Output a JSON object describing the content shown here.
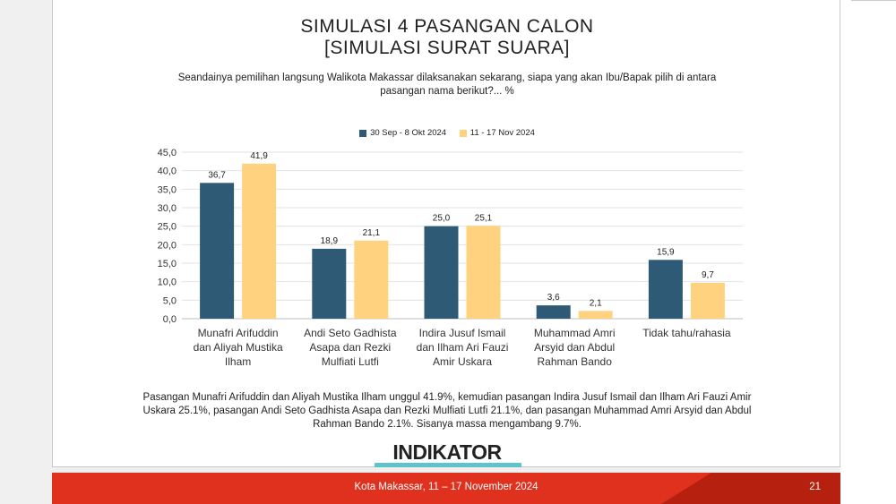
{
  "slide": {
    "title_line1": "SIMULASI 4 PASANGAN CALON",
    "title_line2": "[SIMULASI SURAT SUARA]",
    "question_line1": "Seandainya pemilihan langsung Walikota Makassar dilaksanakan sekarang, siapa yang akan Ibu/Bapak pilih di antara",
    "question_line2": "pasangan nama berikut?... %",
    "summary_line1": "Pasangan Munafri Arifuddin dan Aliyah Mustika Ilham unggul 41.9%, kemudian pasangan Indira Jusuf Ismail dan Ilham Ari Fauzi Amir",
    "summary_line2": "Uskara 25.1%, pasangan Andi Seto Gadhista Asapa dan Rezki Mulfiati Lutfi 21.1%, dan pasangan Muhammad Amri Arsyid dan Abdul",
    "summary_line3": "Rahman Bando 2.1%. Sisanya massa mengambang 9.7%.",
    "logo_text": "INDIKATOR",
    "footer_text": "Kota Makassar, 11 – 17 November 2024",
    "page_number": "21"
  },
  "colors": {
    "series1": "#2e5a76",
    "series2": "#ffd27f",
    "footer": "#e0301e",
    "accent": "#5fc4c8"
  },
  "chart_data": {
    "type": "bar",
    "categories": [
      [
        "Munafri Arifuddin",
        "dan Aliyah Mustika",
        "Ilham"
      ],
      [
        "Andi Seto Gadhista",
        "Asapa dan Rezki",
        "Mulfiati Lutfi"
      ],
      [
        "Indira Jusuf Ismail",
        "dan Ilham Ari Fauzi",
        "Amir Uskara"
      ],
      [
        "Muhammad Amri",
        "Arsyid dan Abdul",
        "Rahman Bando"
      ],
      [
        "Tidak tahu/rahasia"
      ]
    ],
    "series": [
      {
        "name": "30 Sep - 8 Okt 2024",
        "values": [
          36.7,
          18.9,
          25.0,
          3.6,
          15.9
        ],
        "labels": [
          "36,7",
          "18,9",
          "25,0",
          "3,6",
          "15,9"
        ]
      },
      {
        "name": "11 - 17 Nov 2024",
        "values": [
          41.9,
          21.1,
          25.1,
          2.1,
          9.7
        ],
        "labels": [
          "41,9",
          "21,1",
          "25,1",
          "2,1",
          "9,7"
        ]
      }
    ],
    "ylim": [
      0,
      45
    ],
    "yticks": [
      "0,0",
      "5,0",
      "10,0",
      "15,0",
      "20,0",
      "25,0",
      "30,0",
      "35,0",
      "40,0",
      "45,0"
    ],
    "grid": true,
    "legend": "top"
  }
}
